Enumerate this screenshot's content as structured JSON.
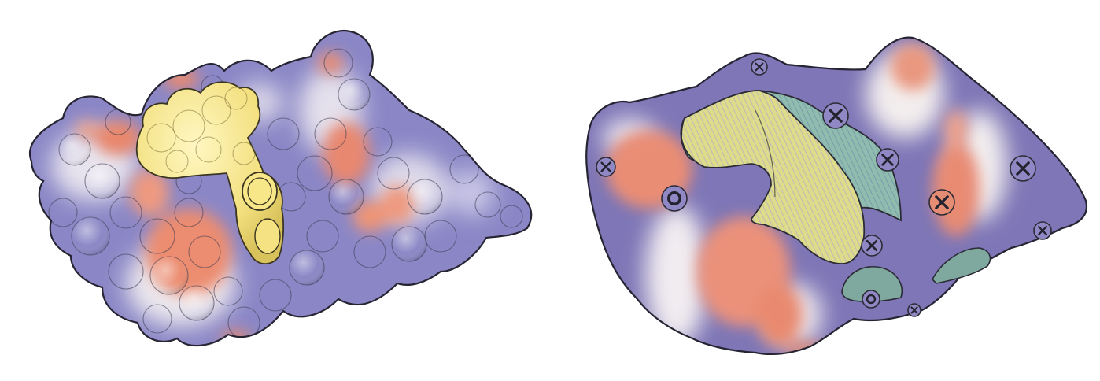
{
  "panels": [
    {
      "id": "left",
      "description_role": "molecular-surface-with-ligand",
      "colors": {
        "base": "#8b87c6",
        "neutral": "#e9e7ef",
        "acidic": "#e8876d",
        "ligand": "#f5e383",
        "outline": "#2b2b36"
      }
    },
    {
      "id": "right",
      "description_role": "simplified-surface-with-annotations",
      "colors": {
        "base": "#7e76b6",
        "neutral": "#f2eeee",
        "acidic": "#e98f78",
        "hatch_yellow": "#d9dc86",
        "hatch_teal": "#86b5a8",
        "patch": "#7fa99f",
        "outline": "#2b2b36"
      },
      "markers": [
        {
          "kind": "plus",
          "label": "+"
        },
        {
          "kind": "plus",
          "label": "+"
        },
        {
          "kind": "plus",
          "label": "+"
        },
        {
          "kind": "plus",
          "label": "+"
        },
        {
          "kind": "plus",
          "label": "+"
        },
        {
          "kind": "plus",
          "label": "+"
        },
        {
          "kind": "plus",
          "label": "+"
        },
        {
          "kind": "plus",
          "label": "+"
        },
        {
          "kind": "plus",
          "label": "+"
        },
        {
          "kind": "ring",
          "label": "o"
        },
        {
          "kind": "ring",
          "label": "o"
        }
      ]
    }
  ]
}
